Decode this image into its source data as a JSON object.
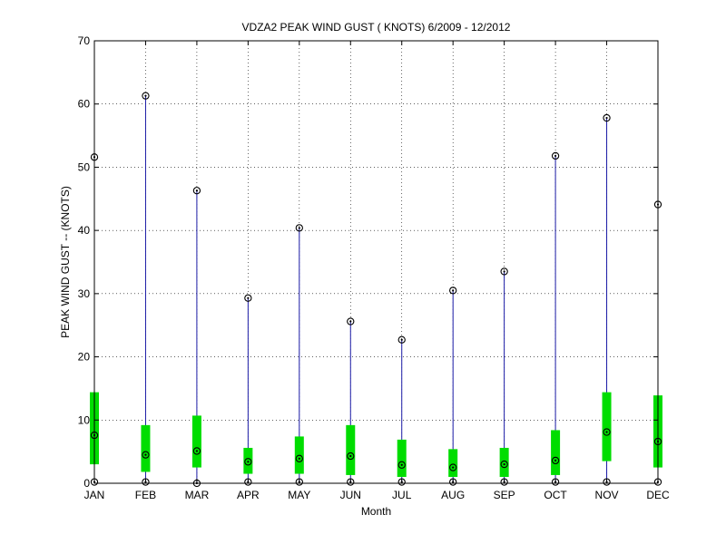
{
  "chart_data": {
    "type": "box",
    "title": "VDZA2  PEAK WIND GUST ( KNOTS) 6/2009 - 12/2012",
    "xlabel": "Month",
    "ylabel": "PEAK WIND GUST -- (KNOTS)",
    "ylim": [
      0,
      70
    ],
    "yticks": [
      "0",
      "10",
      "20",
      "30",
      "40",
      "50",
      "60",
      "70"
    ],
    "grid": true,
    "categories": [
      "JAN",
      "FEB",
      "MAR",
      "APR",
      "MAY",
      "JUN",
      "JUL",
      "AUG",
      "SEP",
      "OCT",
      "NOV",
      "DEC"
    ],
    "min": [
      0.2,
      0.2,
      0.0,
      0.2,
      0.2,
      0.2,
      0.2,
      0.2,
      0.2,
      0.2,
      0.2,
      0.2
    ],
    "q1": [
      3.0,
      1.8,
      2.5,
      1.5,
      1.5,
      1.3,
      1.0,
      1.0,
      1.0,
      1.3,
      3.5,
      2.5
    ],
    "median": [
      7.6,
      4.5,
      5.1,
      3.4,
      3.9,
      4.3,
      2.9,
      2.5,
      3.0,
      3.6,
      8.1,
      6.6
    ],
    "q3": [
      14.4,
      9.2,
      10.7,
      5.6,
      7.4,
      9.2,
      6.9,
      5.4,
      5.6,
      8.4,
      14.4,
      13.9
    ],
    "max": [
      51.6,
      61.3,
      46.3,
      29.3,
      40.4,
      25.6,
      22.7,
      30.5,
      33.5,
      51.8,
      57.8,
      44.1
    ],
    "colors": {
      "whisker": "#1a1aa6",
      "box": "#00dd00",
      "marker": "#000000",
      "grid": "#000000"
    }
  }
}
